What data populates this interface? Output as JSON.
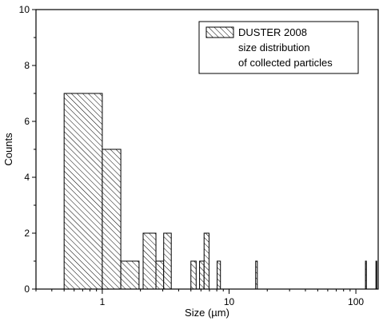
{
  "chart_data": {
    "type": "bar",
    "subtype": "histogram",
    "x_scale": "log",
    "xlabel": "Size (µm)",
    "ylabel": "Counts",
    "xlim": [
      0.3,
      150
    ],
    "ylim": [
      0,
      10
    ],
    "x_ticks": [
      {
        "value": 1,
        "label": "1"
      },
      {
        "value": 10,
        "label": "10"
      },
      {
        "value": 100,
        "label": "100"
      }
    ],
    "y_ticks": [
      {
        "value": 0,
        "label": "0"
      },
      {
        "value": 2,
        "label": "2"
      },
      {
        "value": 4,
        "label": "4"
      },
      {
        "value": 6,
        "label": "6"
      },
      {
        "value": 8,
        "label": "8"
      },
      {
        "value": 10,
        "label": "10"
      }
    ],
    "grid": false,
    "legend_position": "top-right",
    "legend": {
      "lines": [
        "DUSTER 2008",
        "size distribution",
        "of collected particles"
      ]
    },
    "bins": [
      {
        "x0": 0.5,
        "x1": 1.0,
        "count": 7
      },
      {
        "x0": 1.0,
        "x1": 1.4,
        "count": 5
      },
      {
        "x0": 1.4,
        "x1": 1.95,
        "count": 1
      },
      {
        "x0": 2.1,
        "x1": 2.65,
        "count": 2
      },
      {
        "x0": 2.65,
        "x1": 3.05,
        "count": 1
      },
      {
        "x0": 3.05,
        "x1": 3.5,
        "count": 2
      },
      {
        "x0": 5.0,
        "x1": 5.5,
        "count": 1
      },
      {
        "x0": 5.85,
        "x1": 6.35,
        "count": 1
      },
      {
        "x0": 6.35,
        "x1": 6.95,
        "count": 2
      },
      {
        "x0": 8.05,
        "x1": 8.55,
        "count": 1
      },
      {
        "x0": 16.2,
        "x1": 16.7,
        "count": 1
      },
      {
        "x0": 119,
        "x1": 121,
        "count": 1
      },
      {
        "x0": 144,
        "x1": 146,
        "count": 1
      }
    ],
    "colors": {
      "stroke": "#000000",
      "hatch": "#000000",
      "background": "#ffffff"
    }
  }
}
